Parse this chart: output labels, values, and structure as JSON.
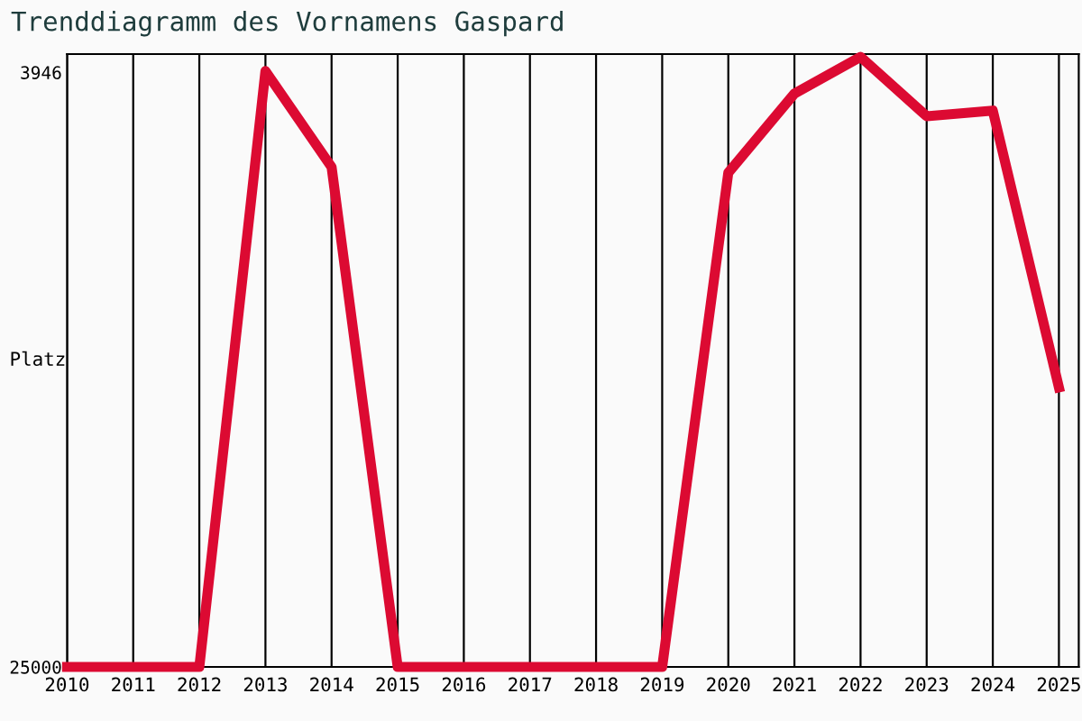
{
  "chart_data": {
    "type": "line",
    "title": "Trenddiagramm des Vornamens Gaspard",
    "ylabel": "Platz",
    "x": [
      2010,
      2011,
      2012,
      2013,
      2014,
      2015,
      2016,
      2017,
      2018,
      2019,
      2020,
      2021,
      2022,
      2023,
      2024,
      2025
    ],
    "series": [
      {
        "color": "#dc0a32",
        "values": [
          25000,
          25000,
          25000,
          3900,
          7300,
          25000,
          25000,
          25000,
          25000,
          25000,
          7500,
          4700,
          3400,
          5500,
          5300,
          15100
        ]
      }
    ],
    "xlim": [
      2010,
      2025.3
    ],
    "xticks": [
      2010,
      2011,
      2012,
      2013,
      2014,
      2015,
      2016,
      2017,
      2018,
      2019,
      2020,
      2021,
      2022,
      2023,
      2024,
      2025
    ],
    "ylim": [
      25000,
      3300
    ],
    "yticks": [
      3946,
      25000
    ],
    "grid": "x",
    "marker": "none",
    "line_style": "solid"
  }
}
